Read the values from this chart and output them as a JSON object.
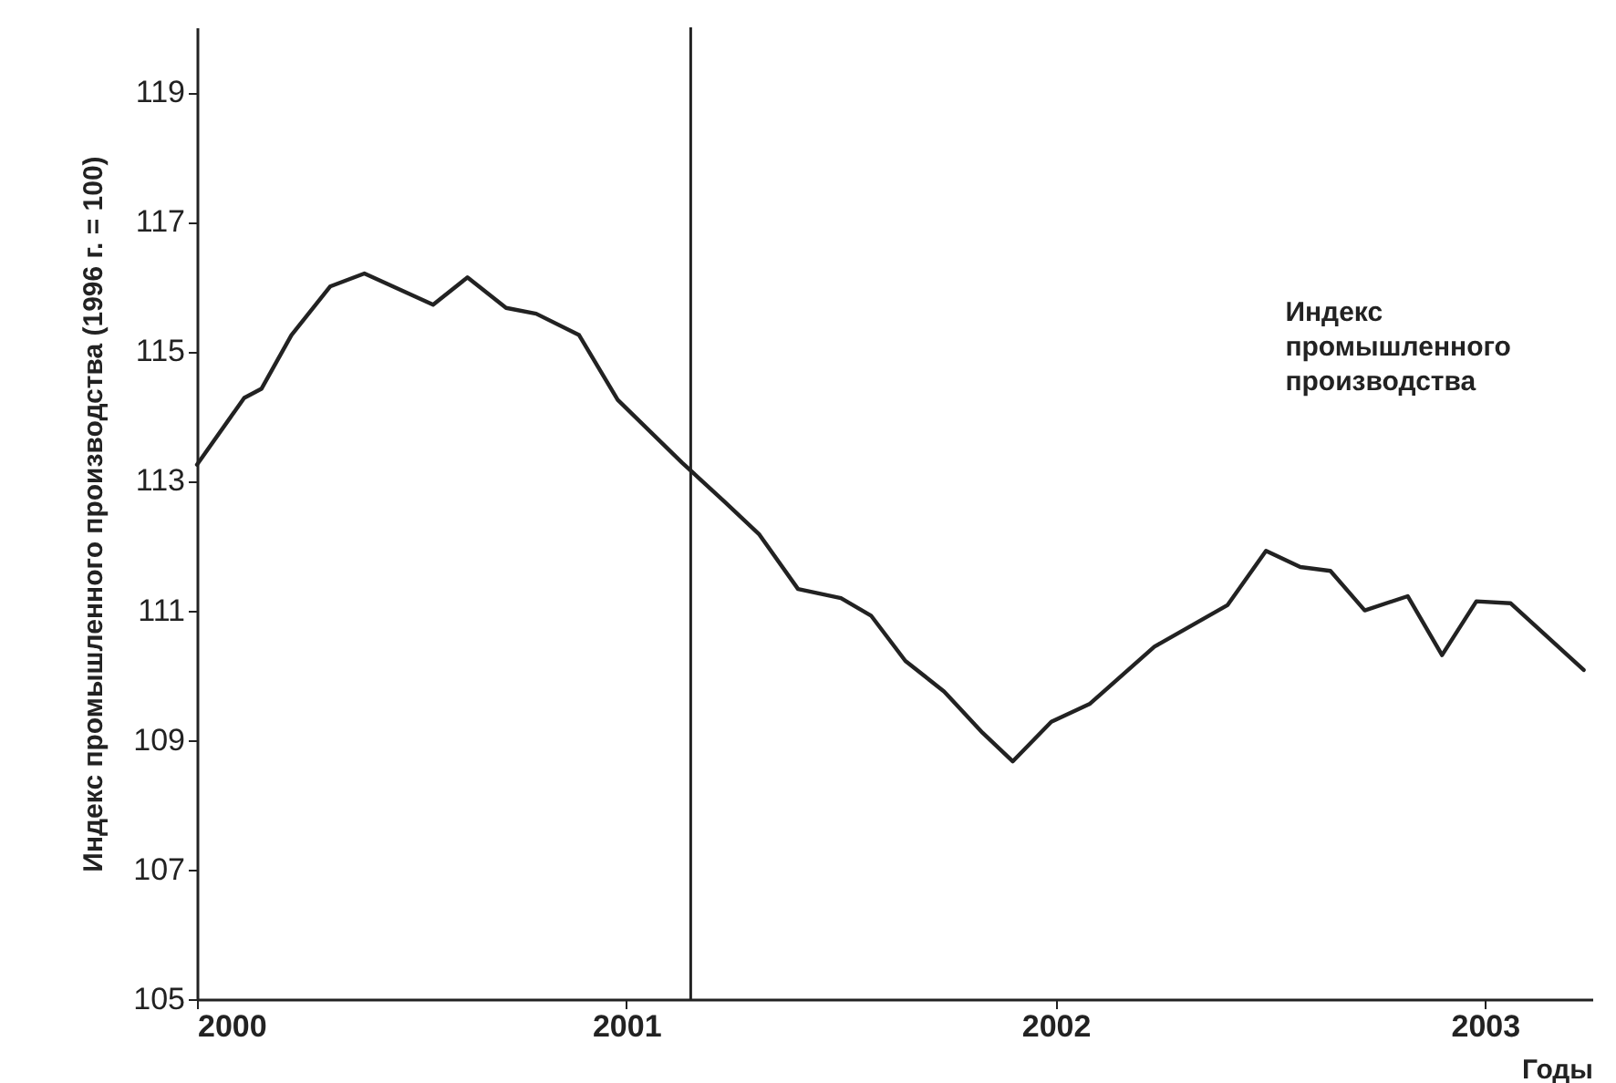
{
  "chart_data": {
    "type": "line",
    "xlabel": "Годы",
    "ylabel": "Индекс промышленного производства (1996 г. = 100)",
    "x": [
      2000.0,
      2000.11,
      2000.15,
      2000.22,
      2000.31,
      2000.39,
      2000.55,
      2000.63,
      2000.72,
      2000.79,
      2000.89,
      2000.98,
      2001.13,
      2001.23,
      2001.31,
      2001.4,
      2001.5,
      2001.57,
      2001.65,
      2001.74,
      2001.83,
      2001.9,
      2001.99,
      2002.08,
      2002.23,
      2002.4,
      2002.49,
      2002.57,
      2002.64,
      2002.72,
      2002.82,
      2002.9,
      2002.98,
      2003.06,
      2003.23
    ],
    "series": [
      {
        "name": "Индекс промышленного производства",
        "color": "#222222",
        "values": [
          113.25,
          114.28,
          114.42,
          115.25,
          116.0,
          116.2,
          115.72,
          116.14,
          115.67,
          115.58,
          115.25,
          114.25,
          113.28,
          112.67,
          112.17,
          111.33,
          111.19,
          110.92,
          110.22,
          109.75,
          109.11,
          108.67,
          109.28,
          109.56,
          110.44,
          111.08,
          111.92,
          111.67,
          111.61,
          111.0,
          111.22,
          110.31,
          111.14,
          111.11,
          110.08
        ]
      }
    ],
    "xlim": [
      2000,
      2003.25
    ],
    "xticks": [
      2000,
      2001,
      2002,
      2003
    ],
    "ylim": [
      105,
      120
    ],
    "yticks": [
      105,
      107,
      109,
      111,
      113,
      115,
      117,
      119
    ],
    "ref_lines": [
      {
        "axis": "x",
        "value": 2001.15,
        "color": "#222222"
      }
    ],
    "grid": false,
    "marker": "none",
    "line_style": "solid"
  }
}
